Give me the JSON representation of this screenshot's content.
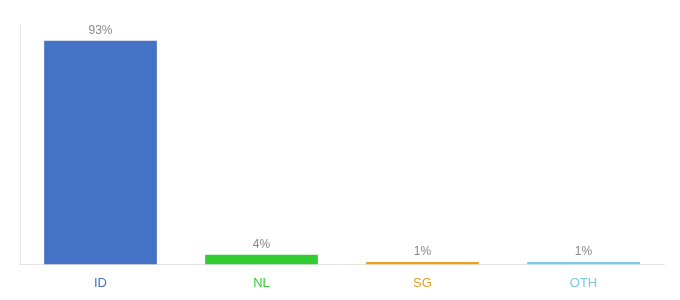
{
  "chart_data": {
    "type": "bar",
    "categories": [
      "ID",
      "NL",
      "SG",
      "OTH"
    ],
    "values": [
      93,
      4,
      1,
      1
    ],
    "value_labels": [
      "93%",
      "4%",
      "1%",
      "1%"
    ],
    "colors": [
      "#4472C4",
      "#33CC33",
      "#E8A020",
      "#7EC8E3"
    ],
    "ylim": [
      0,
      100
    ],
    "grid": false,
    "legend": null,
    "data_labels": true,
    "tick_labels": "x"
  }
}
